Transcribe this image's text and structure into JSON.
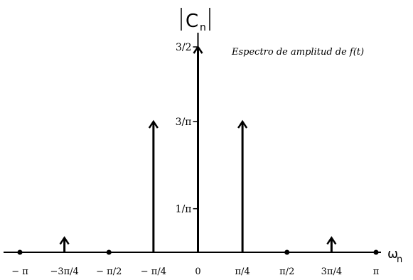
{
  "chart_data": {
    "type": "stem",
    "title": "Espectro de amplitud de f(t)",
    "ylabel": "|Cn|",
    "ylabel_main": "C",
    "ylabel_sub": "n",
    "xlabel": "ωn",
    "xlabel_main": "ω",
    "xlabel_sub": "n",
    "x": [
      -3.1416,
      -2.3562,
      -1.5708,
      -0.7854,
      0,
      0.7854,
      1.5708,
      2.3562,
      3.1416
    ],
    "values": [
      0,
      0.1061,
      0,
      0.9549,
      1.5,
      0.9549,
      0,
      0.1061,
      0
    ],
    "xticks": [
      {
        "value": -3.1416,
        "label": "− π"
      },
      {
        "value": -2.3562,
        "label": "−3π/4"
      },
      {
        "value": -1.5708,
        "label": "− π/2"
      },
      {
        "value": -0.7854,
        "label": "− π/4"
      },
      {
        "value": 0,
        "label": "0"
      },
      {
        "value": 0.7854,
        "label": "π/4"
      },
      {
        "value": 1.5708,
        "label": "π/2"
      },
      {
        "value": 2.3562,
        "label": "3π/4"
      },
      {
        "value": 3.1416,
        "label": "π"
      }
    ],
    "yticks": [
      {
        "value": 0.3183,
        "label": "1/π"
      },
      {
        "value": 0.9549,
        "label": "3/π"
      },
      {
        "value": 1.5,
        "label": "3/2"
      }
    ],
    "xlim": [
      -3.1416,
      3.1416
    ],
    "ylim": [
      0,
      1.5
    ],
    "grid": false,
    "color": "#000000"
  }
}
